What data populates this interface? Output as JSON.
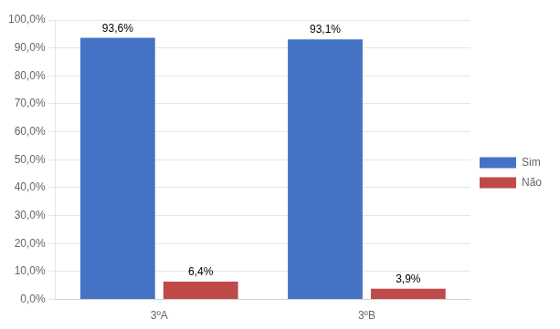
{
  "chart_data": {
    "type": "bar",
    "categories": [
      "3ºA",
      "3ºB"
    ],
    "series": [
      {
        "name": "Sim",
        "color": "#4472C4",
        "values": [
          93.6,
          93.1
        ],
        "value_labels": [
          "93,6%",
          "93,1%"
        ]
      },
      {
        "name": "Não",
        "color": "#BE4B48",
        "values": [
          6.4,
          3.9
        ],
        "value_labels": [
          "6,4%",
          "3,9%"
        ]
      }
    ],
    "ylim": [
      0,
      100
    ],
    "yticks": [
      {
        "value": 0,
        "label": "0,0%"
      },
      {
        "value": 10,
        "label": "10,0%"
      },
      {
        "value": 20,
        "label": "20,0%"
      },
      {
        "value": 30,
        "label": "30,0%"
      },
      {
        "value": 40,
        "label": "40,0%"
      },
      {
        "value": 50,
        "label": "50,0%"
      },
      {
        "value": 60,
        "label": "60,0%"
      },
      {
        "value": 70,
        "label": "70,0%"
      },
      {
        "value": 80,
        "label": "80,0%"
      },
      {
        "value": 90,
        "label": "90,0%"
      },
      {
        "value": 100,
        "label": "100,0%"
      }
    ],
    "grid": true,
    "legend": "right",
    "data_labels": true
  }
}
